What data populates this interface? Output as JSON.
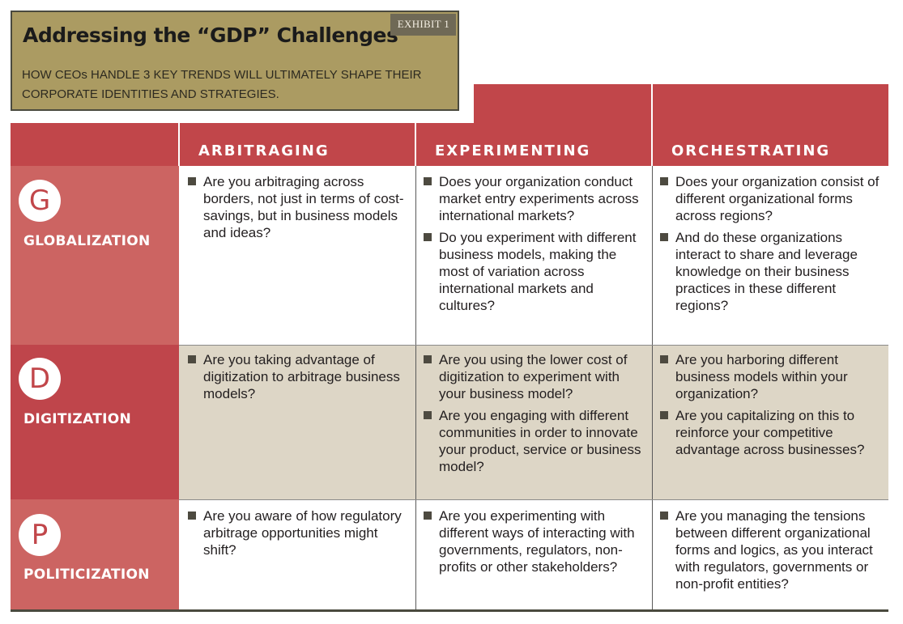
{
  "header": {
    "title": "Addressing the “GDP” Challenges",
    "exhibit": "EXHIBIT 1",
    "subtitle": "HOW CEOs HANDLE 3 KEY TRENDS WILL ULTIMATELY SHAPE THEIR CORPORATE IDENTITIES AND STRATEGIES."
  },
  "colors": {
    "red": "#c1464a",
    "label_light": "#cc6462",
    "label_dark": "#bf454b",
    "beige": "#ddd6c6",
    "title_bg": "#ab9b62"
  },
  "columns": [
    "ARBITRAGING",
    "EXPERIMENTING",
    "ORCHESTRATING"
  ],
  "rows": [
    {
      "letter": "G",
      "name": "GLOBALIZATION",
      "cells": [
        [
          "Are you arbitraging across borders, not just in terms of cost-savings, but in business models and ideas?"
        ],
        [
          "Does your organization conduct market entry experiments across international markets?",
          "Do you experiment with different business models, making the most of variation across international markets and cultures?"
        ],
        [
          "Does your organization consist of different organizational forms across regions?",
          "And do these organizations interact to share and leverage knowledge on their business practices in these different regions?"
        ]
      ]
    },
    {
      "letter": "D",
      "name": "DIGITIZATION",
      "cells": [
        [
          "Are you taking advantage of digitization to arbitrage business models?"
        ],
        [
          "Are you using the lower cost of digitization to experiment with your business model?",
          "Are you engaging with different communities in order to innovate your product, service or business model?"
        ],
        [
          "Are you harboring different business models within your organization?",
          "Are you capitalizing on this to reinforce your competitive advantage across businesses?"
        ]
      ]
    },
    {
      "letter": "P",
      "name": "POLITICIZATION",
      "cells": [
        [
          "Are you aware of how regulatory arbitrage opportunities might shift?"
        ],
        [
          "Are you experimenting with different ways of interacting with governments, regulators, non-profits or other stakeholders?"
        ],
        [
          "Are you managing the tensions between different organizational forms and logics, as you interact with regulators, governments or non-profit entities?"
        ]
      ]
    }
  ]
}
